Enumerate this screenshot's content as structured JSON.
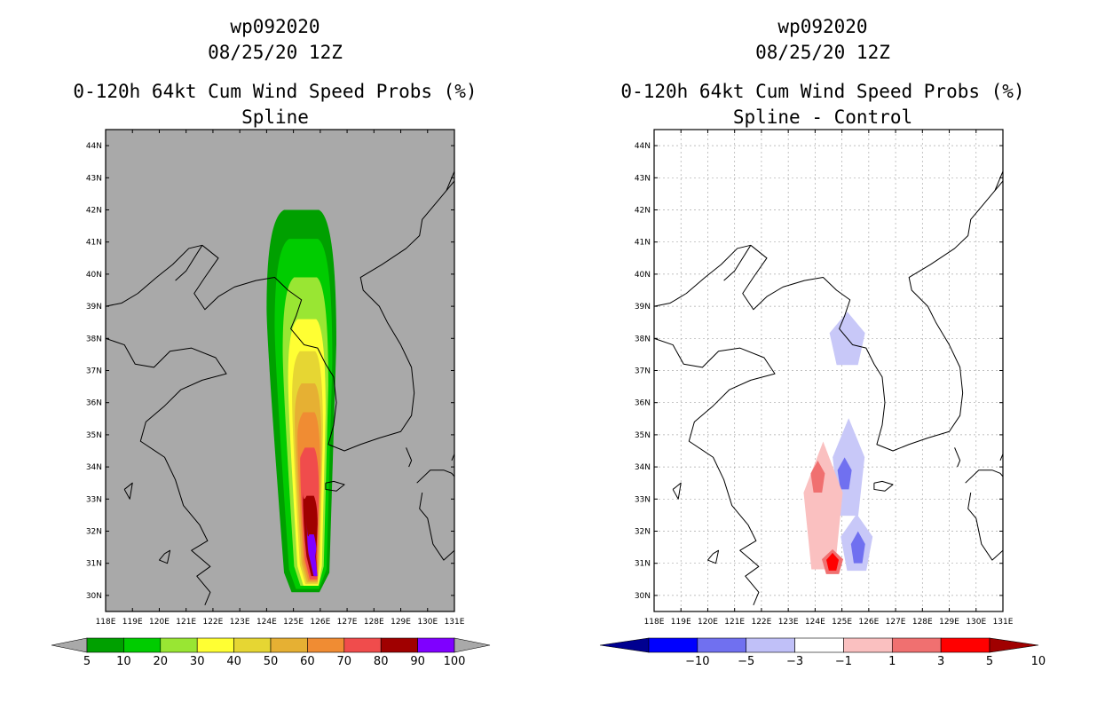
{
  "chart_data": [
    {
      "type": "filled-contour-map",
      "storm_id": "wp092020",
      "datetime": "08/25/20 12Z",
      "title": "0-120h 64kt Cum Wind Speed Probs (%)",
      "subtitle": "Spline",
      "background_color": "#a9a9a9",
      "grid": false,
      "lon_range": [
        118,
        131
      ],
      "lat_range": [
        29.5,
        44.5
      ],
      "x_ticks": [
        "118E",
        "119E",
        "120E",
        "121E",
        "122E",
        "123E",
        "124E",
        "125E",
        "126E",
        "127E",
        "128E",
        "129E",
        "130E",
        "131E"
      ],
      "y_ticks": [
        "30N",
        "31N",
        "32N",
        "33N",
        "34N",
        "35N",
        "36N",
        "37N",
        "38N",
        "39N",
        "40N",
        "41N",
        "42N",
        "43N",
        "44N"
      ],
      "colorbar": {
        "labels": [
          "5",
          "10",
          "20",
          "30",
          "40",
          "50",
          "60",
          "70",
          "80",
          "90",
          "100"
        ],
        "colors": [
          "#00a000",
          "#00cc00",
          "#99e633",
          "#ffff33",
          "#e6d633",
          "#e6b033",
          "#f08c33",
          "#f04c4c",
          "#a00000",
          "#7f00ff"
        ]
      },
      "levels": [
        {
          "value": 5,
          "color": "#00a000",
          "lat_max": 42.0,
          "lat_min": 30.1,
          "west": 124.0,
          "east": 126.6
        },
        {
          "value": 10,
          "color": "#00cc00",
          "lat_max": 41.1,
          "lat_min": 30.2,
          "west": 124.3,
          "east": 126.45
        },
        {
          "value": 20,
          "color": "#99e633",
          "lat_max": 39.9,
          "lat_min": 30.3,
          "west": 124.6,
          "east": 126.3
        },
        {
          "value": 30,
          "color": "#ffff33",
          "lat_max": 38.6,
          "lat_min": 30.3,
          "west": 124.8,
          "east": 126.2
        },
        {
          "value": 40,
          "color": "#e6d633",
          "lat_max": 37.6,
          "lat_min": 30.35,
          "west": 124.95,
          "east": 126.1
        },
        {
          "value": 50,
          "color": "#e6b033",
          "lat_max": 36.6,
          "lat_min": 30.4,
          "west": 125.05,
          "east": 126.05
        },
        {
          "value": 60,
          "color": "#f08c33",
          "lat_max": 35.7,
          "lat_min": 30.45,
          "west": 125.15,
          "east": 126.0
        },
        {
          "value": 70,
          "color": "#f04c4c",
          "lat_max": 34.6,
          "lat_min": 30.5,
          "west": 125.25,
          "east": 125.95
        },
        {
          "value": 80,
          "color": "#a00000",
          "lat_max": 33.1,
          "lat_min": 30.6,
          "west": 125.35,
          "east": 125.9
        },
        {
          "value": 90,
          "color": "#7f00ff",
          "lat_max": 31.9,
          "lat_min": 30.6,
          "west": 125.5,
          "east": 125.85
        }
      ]
    },
    {
      "type": "filled-contour-map",
      "storm_id": "wp092020",
      "datetime": "08/25/20 12Z",
      "title": "0-120h 64kt Cum Wind Speed Probs (%)",
      "subtitle": "Spline - Control",
      "background_color": "#ffffff",
      "grid": true,
      "lon_range": [
        118,
        131
      ],
      "lat_range": [
        29.5,
        44.5
      ],
      "x_ticks": [
        "118E",
        "119E",
        "120E",
        "121E",
        "122E",
        "123E",
        "124E",
        "125E",
        "126E",
        "127E",
        "128E",
        "129E",
        "130E",
        "131E"
      ],
      "y_ticks": [
        "30N",
        "31N",
        "32N",
        "33N",
        "34N",
        "35N",
        "36N",
        "37N",
        "38N",
        "39N",
        "40N",
        "41N",
        "42N",
        "43N",
        "44N"
      ],
      "colorbar": {
        "labels": [
          "-10",
          "-5",
          "-3",
          "-1",
          "1",
          "3",
          "5",
          "10"
        ],
        "colors": [
          "#000090",
          "#0000ff",
          "#7070f0",
          "#c0c0f8",
          "#ffffff",
          "#fac0c0",
          "#f07070",
          "#ff0000",
          "#a00000"
        ]
      },
      "anomalies": [
        {
          "sign": "neg",
          "level": "-1 to -3",
          "color": "#c8c8f8",
          "center_lon": 125.2,
          "center_lat": 38.0,
          "value": -2
        },
        {
          "sign": "neg",
          "level": "-1 to -3",
          "color": "#c8c8f8",
          "center_lon": 125.25,
          "center_lat": 34.0,
          "value": -2
        },
        {
          "sign": "neg",
          "level": "-3 to -5",
          "color": "#7070f0",
          "center_lon": 125.1,
          "center_lat": 33.8,
          "value": -4
        },
        {
          "sign": "neg",
          "level": "-1 to -3",
          "color": "#c8c8f8",
          "center_lon": 125.55,
          "center_lat": 31.65,
          "value": -2
        },
        {
          "sign": "neg",
          "level": "-3 to -5",
          "color": "#7070f0",
          "center_lon": 125.6,
          "center_lat": 31.5,
          "value": -4
        },
        {
          "sign": "pos",
          "level": "1 to 3",
          "color": "#fac0c0",
          "center_lon": 124.3,
          "center_lat": 32.8,
          "value": 2
        },
        {
          "sign": "pos",
          "level": "3 to 5",
          "color": "#f07070",
          "center_lon": 124.1,
          "center_lat": 33.7,
          "value": 4
        },
        {
          "sign": "pos",
          "level": "3 to 5",
          "color": "#f07070",
          "center_lon": 124.65,
          "center_lat": 31.05,
          "value": 4
        },
        {
          "sign": "pos",
          "level": "5 to 10",
          "color": "#ff0000",
          "center_lon": 124.65,
          "center_lat": 31.05,
          "value": 7
        }
      ]
    }
  ]
}
